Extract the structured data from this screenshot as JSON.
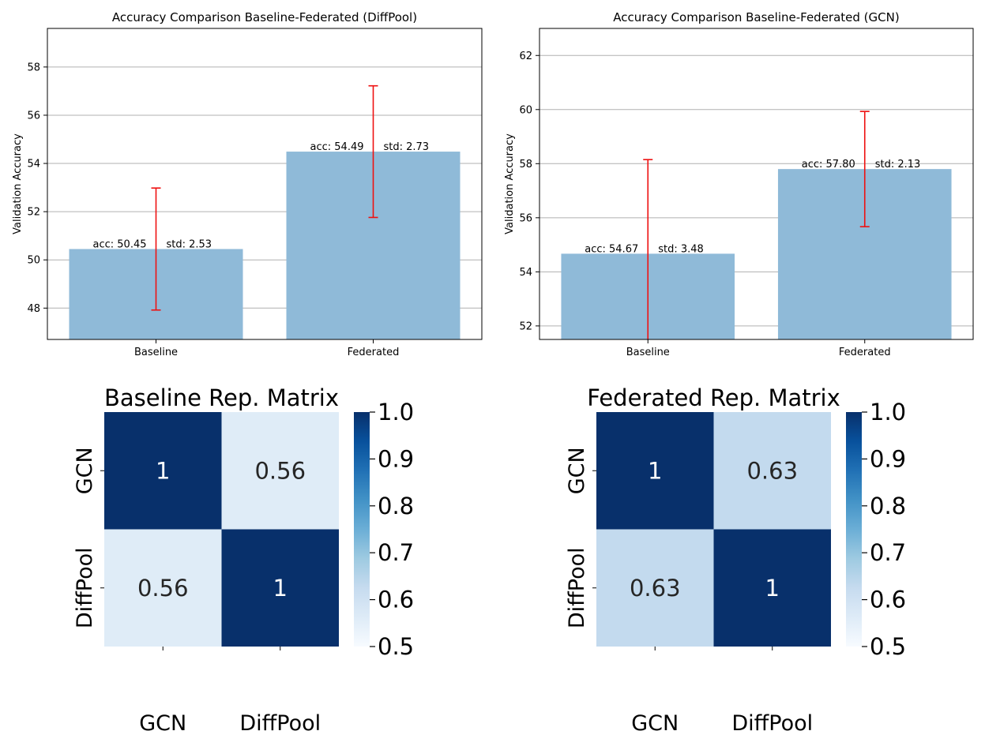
{
  "chart_data": [
    {
      "type": "bar",
      "title": "Accuracy Comparison Baseline-Federated (DiffPool)",
      "xlabel": "",
      "ylabel": "Validation Accuracy",
      "categories": [
        "Baseline",
        "Federated"
      ],
      "values": [
        50.45,
        54.49
      ],
      "errors": [
        2.53,
        2.73
      ],
      "annotations": [
        {
          "acc": "acc: 50.45",
          "std": "std: 2.53"
        },
        {
          "acc": "acc: 54.49",
          "std": "std: 2.73"
        }
      ],
      "ylim": [
        46.7,
        59.6
      ],
      "yticks": [
        48,
        50,
        52,
        54,
        56,
        58
      ],
      "grid": "y",
      "bar_color": "#8fbad8",
      "error_color": "#ee1111"
    },
    {
      "type": "bar",
      "title": "Accuracy Comparison Baseline-Federated (GCN)",
      "xlabel": "",
      "ylabel": "Validation Accuracy",
      "categories": [
        "Baseline",
        "Federated"
      ],
      "values": [
        54.67,
        57.8
      ],
      "errors": [
        3.48,
        2.13
      ],
      "annotations": [
        {
          "acc": "acc: 54.67",
          "std": "std: 3.48"
        },
        {
          "acc": "acc: 57.80",
          "std": "std: 2.13"
        }
      ],
      "ylim": [
        51.5,
        63.0
      ],
      "yticks": [
        52,
        54,
        56,
        58,
        60,
        62
      ],
      "grid": "y",
      "bar_color": "#8fbad8",
      "error_color": "#ee1111"
    },
    {
      "type": "heatmap",
      "title": "Baseline Rep. Matrix",
      "row_labels": [
        "GCN",
        "DiffPool"
      ],
      "col_labels": [
        "GCN",
        "DiffPool"
      ],
      "values": [
        [
          1,
          0.56
        ],
        [
          0.56,
          1
        ]
      ],
      "cell_labels": [
        [
          "1",
          "0.56"
        ],
        [
          "0.56",
          "1"
        ]
      ],
      "colorscale": "Blues",
      "vmin": 0.5,
      "vmax": 1.0,
      "colorbar_ticks": [
        "0.5",
        "0.6",
        "0.7",
        "0.8",
        "0.9",
        "1.0"
      ]
    },
    {
      "type": "heatmap",
      "title": "Federated Rep. Matrix",
      "row_labels": [
        "GCN",
        "DiffPool"
      ],
      "col_labels": [
        "GCN",
        "DiffPool"
      ],
      "values": [
        [
          1,
          0.63
        ],
        [
          0.63,
          1
        ]
      ],
      "cell_labels": [
        [
          "1",
          "0.63"
        ],
        [
          "0.63",
          "1"
        ]
      ],
      "colorscale": "Blues",
      "vmin": 0.5,
      "vmax": 1.0,
      "colorbar_ticks": [
        "0.5",
        "0.6",
        "0.7",
        "0.8",
        "0.9",
        "1.0"
      ]
    }
  ]
}
